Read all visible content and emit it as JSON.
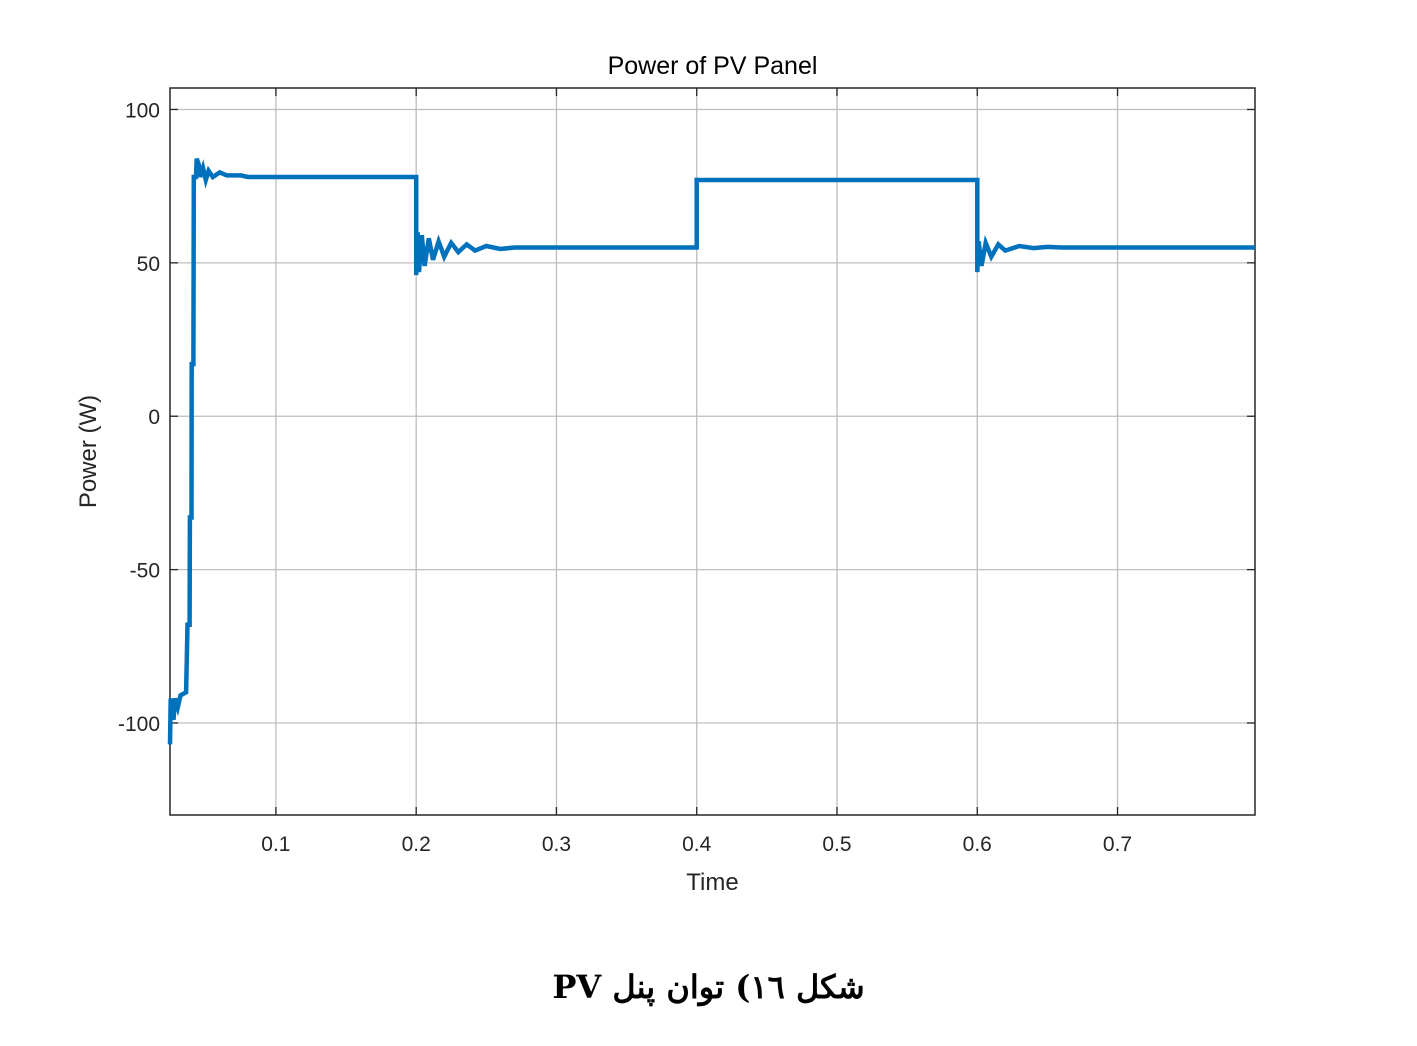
{
  "chart_data": {
    "type": "line",
    "title": "Power of PV Panel",
    "xlabel": "Time",
    "ylabel": "Power (W)",
    "xlim": [
      0.0245,
      0.798
    ],
    "ylim": [
      -130,
      107
    ],
    "xticks": [
      0.1,
      0.2,
      0.3,
      0.4,
      0.5,
      0.6,
      0.7
    ],
    "xtick_labels": [
      "0.1",
      "0.2",
      "0.3",
      "0.4",
      "0.5",
      "0.6",
      "0.7"
    ],
    "yticks": [
      100,
      50,
      0,
      -50,
      -100
    ],
    "ytick_labels": [
      "100",
      "50",
      "0",
      "-50",
      "-100"
    ],
    "grid": true,
    "line_color": "#0072BD",
    "series": [
      {
        "x": [
          0.0245,
          0.025,
          0.027,
          0.028,
          0.03,
          0.032,
          0.036,
          0.037,
          0.0385,
          0.0387,
          0.0398,
          0.04,
          0.0412,
          0.0415,
          0.043,
          0.0435,
          0.045,
          0.046,
          0.048,
          0.05,
          0.052,
          0.055,
          0.06,
          0.065,
          0.075,
          0.08,
          0.2,
          0.2,
          0.201,
          0.202,
          0.204,
          0.206,
          0.209,
          0.212,
          0.216,
          0.22,
          0.225,
          0.23,
          0.236,
          0.242,
          0.25,
          0.26,
          0.27,
          0.4,
          0.4,
          0.6,
          0.6,
          0.601,
          0.603,
          0.606,
          0.61,
          0.615,
          0.62,
          0.63,
          0.64,
          0.65,
          0.66,
          0.798
        ],
        "y": [
          -107,
          -92,
          -99,
          -92,
          -95,
          -91,
          -90,
          -68,
          -68,
          -33,
          -33,
          17,
          17,
          78,
          78,
          84,
          82,
          78,
          81,
          77,
          80,
          78,
          79.5,
          78.5,
          78.5,
          78,
          78,
          46,
          60,
          47,
          59,
          49,
          58,
          51,
          57,
          52,
          56.5,
          53.5,
          56,
          54,
          55.5,
          54.5,
          55,
          55,
          77,
          77,
          47,
          57,
          49,
          56.5,
          52,
          56,
          54,
          55.5,
          54.8,
          55.2,
          55,
          55
        ]
      }
    ]
  },
  "caption": "شکل ١٦) توان پنل PV"
}
